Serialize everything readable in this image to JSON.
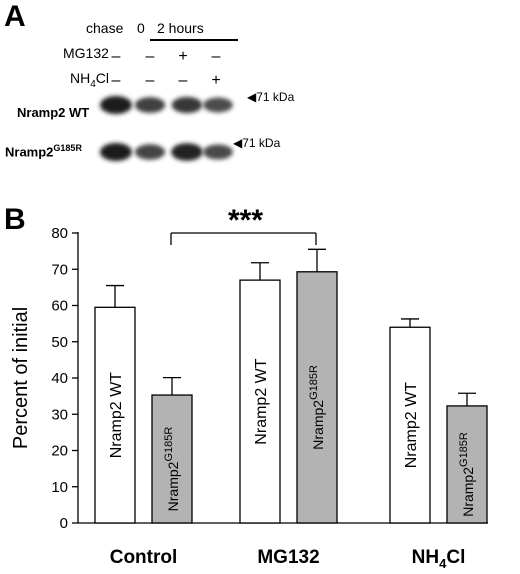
{
  "panel_a": {
    "letter": "A",
    "chase_label": "chase",
    "chase_zero": "0",
    "chase_two": "2 hours",
    "mg132_label": "MG132",
    "nh4cl_label_pre": "NH",
    "nh4cl_label_sub": "4",
    "nh4cl_label_post": "Cl",
    "mg132_signs": [
      "–",
      "–",
      "+",
      "–"
    ],
    "nh4cl_signs": [
      "–",
      "–",
      "–",
      "+"
    ],
    "row1_label": "Nramp2 WT",
    "row2_label_base": "Nramp2",
    "row2_label_sup": "G185R",
    "marker": "71 kDa",
    "row1_band_intensity": [
      1.0,
      0.72,
      0.78,
      0.62
    ],
    "row2_band_intensity": [
      1.0,
      0.68,
      0.95,
      0.64
    ]
  },
  "panel_b": {
    "letter": "B",
    "significance": "***"
  },
  "chart_data": {
    "type": "bar",
    "categories": [
      "Control",
      "MG132",
      "NH4Cl"
    ],
    "category_display": [
      {
        "base": "Control",
        "sub": ""
      },
      {
        "base": "MG132",
        "sub": ""
      },
      {
        "base": "NH",
        "sub": "4",
        "post": "Cl"
      }
    ],
    "ylabel": "Percent of initial",
    "ylim": [
      0,
      80
    ],
    "yticks": [
      0,
      10,
      20,
      30,
      40,
      50,
      60,
      70,
      80
    ],
    "grid": false,
    "series": [
      {
        "name": "Nramp2 WT",
        "label_base": "Nramp2 WT",
        "label_sup": "",
        "color": "#ffffff",
        "values": [
          59.5,
          67,
          54
        ],
        "errors": [
          6,
          4.8,
          2.3
        ]
      },
      {
        "name": "Nramp2G185R",
        "label_base": "Nramp2",
        "label_sup": "G185R",
        "color": "#b3b3b3",
        "values": [
          35.3,
          69.3,
          32.3
        ],
        "errors": [
          4.8,
          6.2,
          3.5
        ]
      }
    ],
    "annotation": {
      "text": "***",
      "from_category": 0,
      "to_category": 1
    }
  }
}
